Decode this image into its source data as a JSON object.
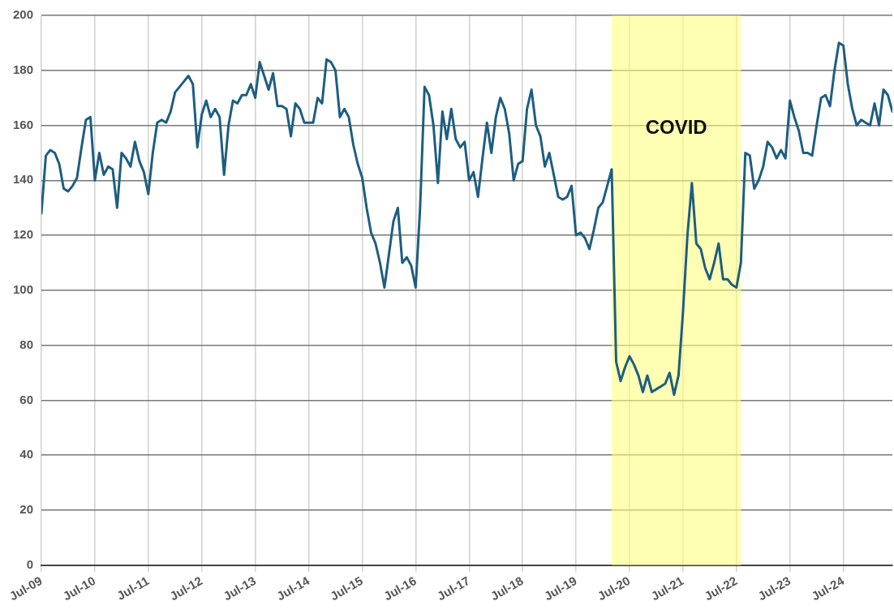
{
  "chart_data": {
    "type": "line",
    "x": [
      "2009-07",
      "2009-08",
      "2009-09",
      "2009-10",
      "2009-11",
      "2009-12",
      "2010-01",
      "2010-02",
      "2010-03",
      "2010-04",
      "2010-05",
      "2010-06",
      "2010-07",
      "2010-08",
      "2010-09",
      "2010-10",
      "2010-11",
      "2010-12",
      "2011-01",
      "2011-02",
      "2011-03",
      "2011-04",
      "2011-05",
      "2011-06",
      "2011-07",
      "2011-08",
      "2011-09",
      "2011-10",
      "2011-11",
      "2011-12",
      "2012-01",
      "2012-02",
      "2012-03",
      "2012-04",
      "2012-05",
      "2012-06",
      "2012-07",
      "2012-08",
      "2012-09",
      "2012-10",
      "2012-11",
      "2012-12",
      "2013-01",
      "2013-02",
      "2013-03",
      "2013-04",
      "2013-05",
      "2013-06",
      "2013-07",
      "2013-08",
      "2013-09",
      "2013-10",
      "2013-11",
      "2013-12",
      "2014-01",
      "2014-02",
      "2014-03",
      "2014-04",
      "2014-05",
      "2014-06",
      "2014-07",
      "2014-08",
      "2014-09",
      "2014-10",
      "2014-11",
      "2014-12",
      "2015-01",
      "2015-02",
      "2015-03",
      "2015-04",
      "2015-05",
      "2015-06",
      "2015-07",
      "2015-08",
      "2015-09",
      "2015-10",
      "2015-11",
      "2015-12",
      "2016-01",
      "2016-02",
      "2016-03",
      "2016-04",
      "2016-05",
      "2016-06",
      "2016-07",
      "2016-08",
      "2016-09",
      "2016-10",
      "2016-11",
      "2016-12",
      "2017-01",
      "2017-02",
      "2017-03",
      "2017-04",
      "2017-05",
      "2017-06",
      "2017-07",
      "2017-08",
      "2017-09",
      "2017-10",
      "2017-11",
      "2017-12",
      "2018-01",
      "2018-02",
      "2018-03",
      "2018-04",
      "2018-05",
      "2018-06",
      "2018-07",
      "2018-08",
      "2018-09",
      "2018-10",
      "2018-11",
      "2018-12",
      "2019-01",
      "2019-02",
      "2019-03",
      "2019-04",
      "2019-05",
      "2019-06",
      "2019-07",
      "2019-08",
      "2019-09",
      "2019-10",
      "2019-11",
      "2019-12",
      "2020-01",
      "2020-02",
      "2020-03",
      "2020-04",
      "2020-05",
      "2020-06",
      "2020-07",
      "2020-08",
      "2020-09",
      "2020-10",
      "2020-11",
      "2020-12",
      "2021-01",
      "2021-02",
      "2021-03",
      "2021-04",
      "2021-05",
      "2021-06",
      "2021-07",
      "2021-08",
      "2021-09",
      "2021-10",
      "2021-11",
      "2021-12",
      "2022-01",
      "2022-02",
      "2022-03",
      "2022-04",
      "2022-05",
      "2022-06",
      "2022-07",
      "2022-08",
      "2022-09",
      "2022-10",
      "2022-11",
      "2022-12",
      "2023-01",
      "2023-02",
      "2023-03",
      "2023-04",
      "2023-05",
      "2023-06",
      "2023-07",
      "2023-08",
      "2023-09",
      "2023-10",
      "2023-11",
      "2023-12",
      "2024-01",
      "2024-02",
      "2024-03",
      "2024-04",
      "2024-05",
      "2024-06",
      "2024-07",
      "2024-08",
      "2024-09",
      "2024-10",
      "2024-11",
      "2024-12",
      "2025-01",
      "2025-02",
      "2025-03",
      "2025-04",
      "2025-05",
      "2025-06"
    ],
    "series": [
      {
        "color": "#1d5e80",
        "values": [
          128,
          149,
          151,
          150,
          146,
          137,
          136,
          138,
          141,
          152,
          162,
          163,
          140,
          150,
          142,
          145,
          144,
          130,
          150,
          148,
          145,
          154,
          147,
          143,
          135,
          150,
          161,
          162,
          161,
          165,
          172,
          174,
          176,
          178,
          175,
          152,
          164,
          169,
          163,
          166,
          163,
          142,
          160,
          169,
          168,
          171,
          171,
          175,
          170,
          183,
          178,
          173,
          179,
          167,
          167,
          166,
          156,
          168,
          166,
          161,
          161,
          161,
          170,
          168,
          184,
          183,
          180,
          163,
          166,
          163,
          153,
          146,
          141,
          130,
          121,
          117,
          110,
          101,
          113,
          125,
          130,
          110,
          112,
          109,
          101,
          130,
          174,
          171,
          160,
          139,
          165,
          155,
          166,
          155,
          152,
          154,
          140,
          143,
          134,
          148,
          161,
          150,
          163,
          170,
          166,
          157,
          140,
          146,
          147,
          166,
          173,
          160,
          156,
          145,
          150,
          142,
          134,
          133,
          134,
          138,
          120,
          121,
          119,
          115,
          122,
          130,
          132,
          138,
          144,
          74,
          67,
          72,
          76,
          73,
          69,
          63,
          69,
          63,
          64,
          65,
          66,
          70,
          62,
          69,
          92,
          120,
          139,
          117,
          115,
          108,
          104,
          110,
          117,
          104,
          104,
          102,
          101,
          110,
          150,
          149,
          137,
          140,
          145,
          154,
          152,
          148,
          151,
          148,
          169,
          163,
          158,
          150,
          150,
          149,
          160,
          170,
          171,
          167,
          180,
          190,
          189,
          175,
          166,
          160,
          162,
          161,
          160,
          168,
          160,
          173,
          171,
          165
        ]
      }
    ],
    "xlim": [
      "2009-07",
      "2025-06"
    ],
    "xticks": [
      {
        "value": "2009-07",
        "label": "Jul-09"
      },
      {
        "value": "2010-07",
        "label": "Jul-10"
      },
      {
        "value": "2011-07",
        "label": "Jul-11"
      },
      {
        "value": "2012-07",
        "label": "Jul-12"
      },
      {
        "value": "2013-07",
        "label": "Jul-13"
      },
      {
        "value": "2014-07",
        "label": "Jul-14"
      },
      {
        "value": "2015-07",
        "label": "Jul-15"
      },
      {
        "value": "2016-07",
        "label": "Jul-16"
      },
      {
        "value": "2017-07",
        "label": "Jul-17"
      },
      {
        "value": "2018-07",
        "label": "Jul-18"
      },
      {
        "value": "2019-07",
        "label": "Jul-19"
      },
      {
        "value": "2020-07",
        "label": "Jul-20"
      },
      {
        "value": "2021-07",
        "label": "Jul-21"
      },
      {
        "value": "2022-07",
        "label": "Jul-22"
      },
      {
        "value": "2023-07",
        "label": "Jul-23"
      },
      {
        "value": "2024-07",
        "label": "Jul-24"
      }
    ],
    "ylim": [
      0,
      200
    ],
    "yticks": [
      0,
      20,
      40,
      60,
      80,
      100,
      120,
      140,
      160,
      180,
      200
    ],
    "grid": true,
    "marker": "none",
    "line_style": "solid",
    "bands": [
      {
        "axis": "x",
        "from": "2020-03",
        "to": "2022-08",
        "label": "COVID",
        "color": "#ffff80"
      }
    ]
  }
}
